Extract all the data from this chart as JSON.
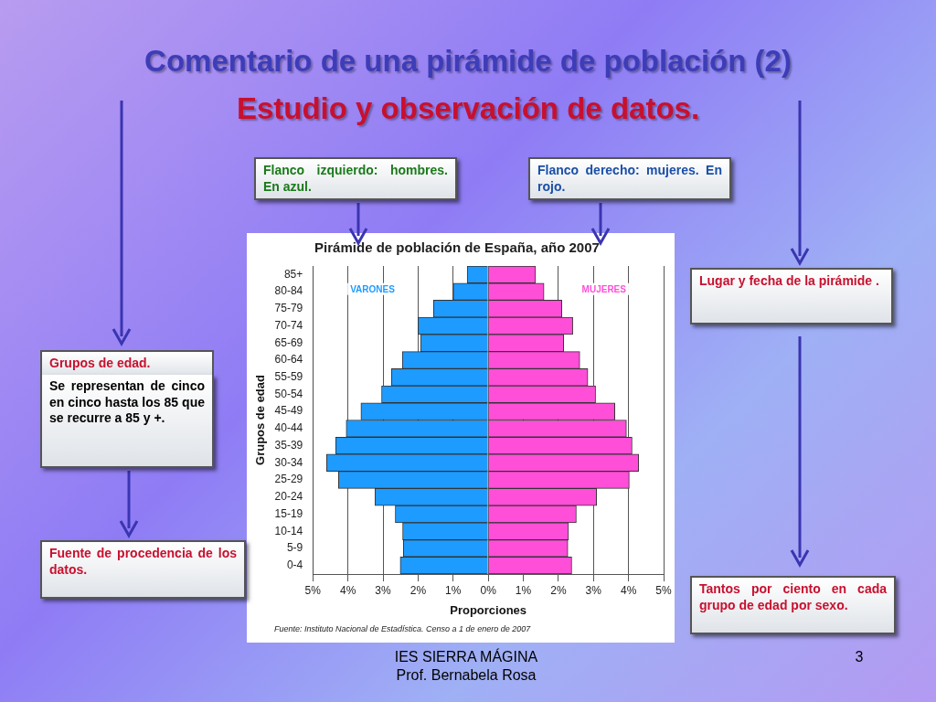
{
  "chart_data": {
    "type": "bar",
    "orientation": "horizontal",
    "stacked": true,
    "title": "Pirámide de población de España, año 2007",
    "xlabel": "Proporciones",
    "ylabel": "Grupos de edad",
    "categories": [
      "85+",
      "80-84",
      "75-79",
      "70-74",
      "65-69",
      "60-64",
      "55-59",
      "50-54",
      "45-49",
      "40-44",
      "35-39",
      "30-34",
      "25-29",
      "20-24",
      "15-19",
      "10-14",
      "5-9",
      "0-4"
    ],
    "series": [
      {
        "name": "VARONES",
        "color": "#1e9bff",
        "values": [
          -0.6,
          -1.0,
          -1.56,
          -2.0,
          -1.93,
          -2.45,
          -2.76,
          -3.04,
          -3.63,
          -4.05,
          -4.35,
          -4.61,
          -4.27,
          -3.23,
          -2.65,
          -2.44,
          -2.42,
          -2.51
        ]
      },
      {
        "name": "MUJERES",
        "color": "#ff4fd8",
        "values": [
          1.35,
          1.59,
          2.1,
          2.41,
          2.15,
          2.61,
          2.84,
          3.06,
          3.61,
          3.94,
          4.1,
          4.29,
          4.02,
          3.09,
          2.51,
          2.29,
          2.27,
          2.38
        ]
      }
    ],
    "xlim": [
      -5,
      5
    ],
    "xticks": [
      {
        "value": -5,
        "label": "5%"
      },
      {
        "value": -4,
        "label": "4%"
      },
      {
        "value": -3,
        "label": "3%"
      },
      {
        "value": -2,
        "label": "2%"
      },
      {
        "value": -1,
        "label": "1%"
      },
      {
        "value": 0,
        "label": "0%"
      },
      {
        "value": 1,
        "label": "1%"
      },
      {
        "value": 2,
        "label": "2%"
      },
      {
        "value": 3,
        "label": "3%"
      },
      {
        "value": 4,
        "label": "4%"
      },
      {
        "value": 5,
        "label": "5%"
      }
    ],
    "grid": "x",
    "legend": false,
    "annotations": [
      "Comentario de una pirámide de población (2)",
      "Estudio y observación de datos.",
      "Flanco izquierdo: hombres. En azul.",
      "Flanco derecho: mujeres. En rojo.",
      "Lugar y fecha de la pirámide .",
      "Grupos de edad.",
      "Se representan de cinco en cinco hasta los 85 que se recurre a 85 y +.",
      "Fuente de procedencia de los datos.",
      "Tantos por ciento en cada grupo de edad por sexo.",
      "Fuente: Instituto Nacional de Estadística. Censo a 1 de enero de 2007",
      "IES SIERRA MÁGINA",
      "Prof. Bernabela Rosa",
      "3"
    ]
  }
}
